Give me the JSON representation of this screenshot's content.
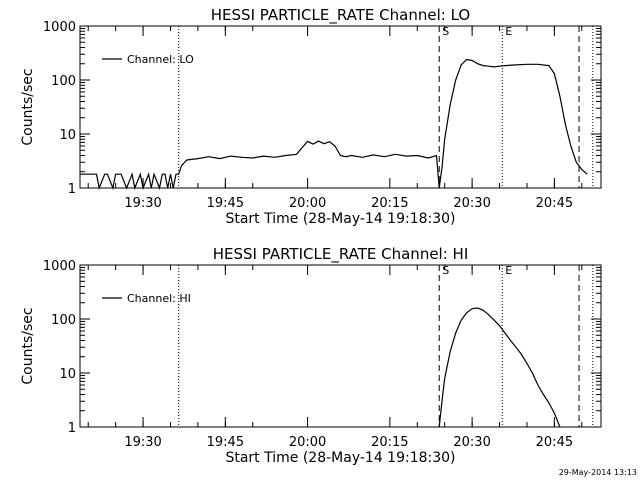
{
  "chart_data": [
    {
      "type": "line",
      "title": "HESSI PARTICLE_RATE Channel: LO",
      "xlabel": "Start Time (28-May-14 19:18:30)",
      "ylabel": "Counts/sec",
      "y_scale": "log",
      "ylim": [
        1,
        1000
      ],
      "xlim": [
        "19:18:30",
        "20:53:30"
      ],
      "x_ticks": [
        "19:30",
        "19:45",
        "20:00",
        "20:15",
        "20:30",
        "20:45"
      ],
      "y_ticks": [
        "1",
        "10",
        "100",
        "1000"
      ],
      "legend": {
        "label": "Channel: LO",
        "placement": "top-left"
      },
      "markers": [
        {
          "label": "",
          "time": "19:36:30",
          "style": "dotted"
        },
        {
          "label": "S",
          "time": "20:24:00",
          "style": "dashed"
        },
        {
          "label": "E",
          "time": "20:35:30",
          "style": "dotted"
        },
        {
          "label": "",
          "time": "20:49:30",
          "style": "dashed"
        },
        {
          "label": "",
          "time": "20:52:00",
          "style": "dotted"
        }
      ],
      "series": [
        {
          "x": [
            "19:18:30",
            "19:20:00",
            "19:21:30",
            "19:22:00",
            "19:23:00",
            "19:23:30",
            "19:24:30",
            "19:25:00",
            "19:26:00",
            "19:27:00",
            "19:28:00",
            "19:28:30",
            "19:29:30",
            "19:30:00",
            "19:31:00",
            "19:31:30",
            "19:32:00",
            "19:33:00",
            "19:33:30",
            "19:34:00",
            "19:34:30",
            "19:35:00",
            "19:35:30",
            "19:36:00",
            "19:36:30",
            "19:37:00",
            "19:38:00",
            "19:40:00",
            "19:42:00",
            "19:44:00",
            "19:46:00",
            "19:48:00",
            "19:50:00",
            "19:52:00",
            "19:54:00",
            "19:56:00",
            "19:58:00",
            "19:59:00",
            "20:00:00",
            "20:01:00",
            "20:02:00",
            "20:03:00",
            "20:04:00",
            "20:05:00",
            "20:06:00",
            "20:07:00",
            "20:08:00",
            "20:10:00",
            "20:12:00",
            "20:14:00",
            "20:16:00",
            "20:18:00",
            "20:20:00",
            "20:22:00",
            "20:23:30",
            "20:24:00",
            "20:24:30",
            "20:25:00",
            "20:26:00",
            "20:27:00",
            "20:28:00",
            "20:29:00",
            "20:30:00",
            "20:31:00",
            "20:32:00",
            "20:33:00",
            "20:34:00",
            "20:35:00",
            "20:36:00",
            "20:38:00",
            "20:40:00",
            "20:42:00",
            "20:44:00",
            "20:45:00",
            "20:46:00",
            "20:47:00",
            "20:48:00",
            "20:49:00",
            "20:50:00",
            "20:51:00"
          ],
          "values": [
            1.8,
            1.8,
            1.8,
            1,
            1.8,
            1.8,
            1,
            1.8,
            1.8,
            1,
            1.8,
            1,
            1.8,
            1,
            1.8,
            1,
            1.8,
            1,
            1.8,
            1.8,
            1,
            1.8,
            1,
            1.8,
            1.8,
            2.6,
            3.3,
            3.5,
            3.8,
            3.5,
            3.9,
            3.7,
            3.6,
            3.9,
            3.7,
            4.0,
            4.2,
            5.6,
            7.3,
            6.5,
            7.4,
            6.6,
            7.2,
            6.0,
            4.0,
            3.8,
            4.0,
            3.7,
            4.1,
            3.8,
            4.2,
            3.9,
            4.0,
            3.6,
            4.0,
            1,
            2.4,
            8,
            35,
            100,
            190,
            240,
            230,
            200,
            185,
            180,
            175,
            180,
            185,
            190,
            195,
            195,
            185,
            130,
            50,
            15,
            6,
            3,
            2.2,
            1.8
          ]
        }
      ]
    },
    {
      "type": "line",
      "title": "HESSI PARTICLE_RATE Channel: HI",
      "xlabel": "Start Time (28-May-14 19:18:30)",
      "ylabel": "Counts/sec",
      "y_scale": "log",
      "ylim": [
        1,
        1000
      ],
      "xlim": [
        "19:18:30",
        "20:53:30"
      ],
      "x_ticks": [
        "19:30",
        "19:45",
        "20:00",
        "20:15",
        "20:30",
        "20:45"
      ],
      "y_ticks": [
        "1",
        "10",
        "100",
        "1000"
      ],
      "legend": {
        "label": "Channel: HI",
        "placement": "top-left"
      },
      "markers": [
        {
          "label": "",
          "time": "19:36:30",
          "style": "dotted"
        },
        {
          "label": "S",
          "time": "20:24:00",
          "style": "dashed"
        },
        {
          "label": "E",
          "time": "20:35:30",
          "style": "dotted"
        },
        {
          "label": "",
          "time": "20:49:30",
          "style": "dashed"
        },
        {
          "label": "",
          "time": "20:52:00",
          "style": "dotted"
        }
      ],
      "series": [
        {
          "x": [
            "20:24:00",
            "20:24:30",
            "20:25:00",
            "20:26:00",
            "20:27:00",
            "20:28:00",
            "20:29:00",
            "20:30:00",
            "20:31:00",
            "20:32:00",
            "20:33:00",
            "20:34:00",
            "20:35:00",
            "20:36:00",
            "20:37:00",
            "20:38:00",
            "20:39:00",
            "20:40:00",
            "20:41:00",
            "20:42:00",
            "20:43:00",
            "20:44:00",
            "20:45:00",
            "20:46:00"
          ],
          "values": [
            1,
            3,
            8,
            25,
            55,
            95,
            130,
            155,
            160,
            145,
            120,
            95,
            75,
            55,
            40,
            30,
            22,
            15,
            10,
            6,
            4,
            2.8,
            1.8,
            1
          ]
        }
      ]
    }
  ],
  "footer": {
    "timestamp": "29-May-2014 13:13"
  }
}
